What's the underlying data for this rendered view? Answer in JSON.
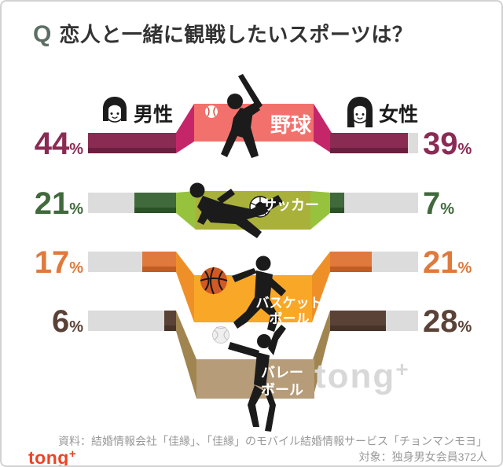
{
  "title": {
    "q_mark": "Q",
    "text": "恋人と一緒に観戦したいスポーツは？"
  },
  "legend": {
    "male": "男性",
    "female": "女性"
  },
  "percent_sign": "%",
  "chart_data": {
    "type": "bar",
    "title": "恋人と一緒に観戦したいスポーツは？",
    "orientation": "horizontal-paired",
    "categories": [
      "野球",
      "サッカー",
      "バスケットボール",
      "バレーボール"
    ],
    "series": [
      {
        "name": "男性",
        "values": [
          44,
          21,
          17,
          6
        ]
      },
      {
        "name": "女性",
        "values": [
          39,
          7,
          21,
          28
        ]
      }
    ],
    "unit": "%",
    "axis_max": 44,
    "legend_position": "top"
  },
  "rows": [
    {
      "sport": "野球",
      "line1": "野球",
      "line2": "",
      "male": 44,
      "female": 39,
      "colors": {
        "panel": "#f3716c",
        "side": "#c5266a",
        "fill": "#8a2b54",
        "dark": "#6b1f40",
        "text": "#8a2b54"
      }
    },
    {
      "sport": "サッカー",
      "line1": "サッカー",
      "line2": "",
      "male": 21,
      "female": 7,
      "colors": {
        "panel": "#a9b13b",
        "side": "#96c23e",
        "fill": "#40693c",
        "dark": "#2b5226",
        "text": "#40693c"
      }
    },
    {
      "sport": "バスケットボール",
      "line1": "バスケット",
      "line2": "ボール",
      "male": 17,
      "female": 21,
      "colors": {
        "panel": "#f8a826",
        "side": "#ee9027",
        "fill": "#e0793c",
        "dark": "#c05d25",
        "text": "#e0793c"
      }
    },
    {
      "sport": "バレーボール",
      "line1": "バレー",
      "line2": "ボール",
      "male": 6,
      "female": 28,
      "colors": {
        "panel": "#b69c79",
        "side": "#a18550",
        "fill": "#5a4237",
        "dark": "#483329",
        "text": "#5a4237"
      }
    }
  ],
  "icons": {
    "male": "boy-face-icon",
    "female": "girl-face-icon",
    "balls": [
      "baseball-icon",
      "soccer-ball-icon",
      "basketball-icon",
      "volleyball-icon"
    ]
  },
  "watermark": {
    "text": "tong",
    "plus": "+"
  },
  "footer": {
    "source": "資料：結婚情報会社「佳縁」、「佳縁」のモバイル結婚情報サービス「チョンマンモヨ」",
    "target": "対象：独身男女会員372人",
    "logo_text": "tong",
    "logo_plus": "+"
  },
  "misc": {
    "track_color": "#dcdcdc",
    "silhouette_color": "#1b1b1b",
    "q_color": "#5d6e64",
    "title_color": "#333333",
    "brand_color": "#ee4323"
  }
}
